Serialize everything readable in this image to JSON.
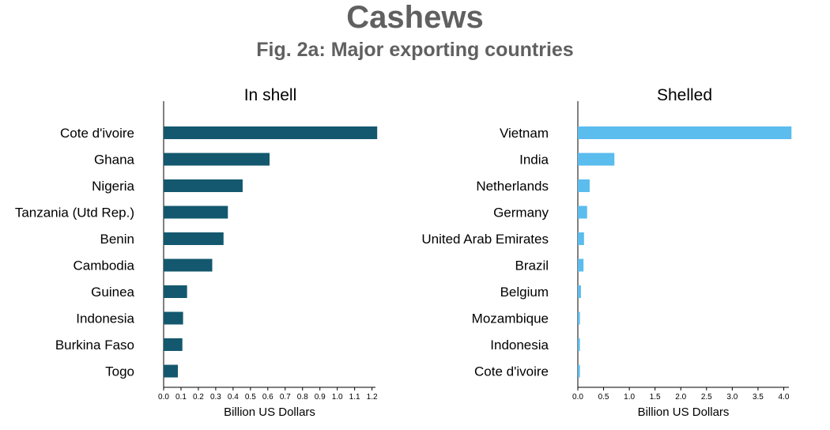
{
  "title": "Cashews",
  "subtitle": "Fig. 2a: Major exporting countries",
  "chart_data": [
    {
      "type": "bar",
      "orientation": "horizontal",
      "title": "In shell",
      "xlabel": "Billion US Dollars",
      "ylabel": "",
      "color": "#13586e",
      "xlim": [
        0,
        1.22
      ],
      "xticks": [
        "0.0",
        "0.1",
        "0.2",
        "0.3",
        "0.4",
        "0.5",
        "0.6",
        "0.7",
        "0.8",
        "0.9",
        "1.0",
        "1.1",
        "1.2"
      ],
      "categories": [
        "Cote d'ivoire",
        "Ghana",
        "Nigeria",
        "Tanzania (Utd Rep.)",
        "Benin",
        "Cambodia",
        "Guinea",
        "Indonesia",
        "Burkina Faso",
        "Togo"
      ],
      "values": [
        1.23,
        0.61,
        0.455,
        0.37,
        0.345,
        0.28,
        0.135,
        0.112,
        0.108,
        0.082
      ]
    },
    {
      "type": "bar",
      "orientation": "horizontal",
      "title": "Shelled",
      "xlabel": "Billion US Dollars",
      "ylabel": "",
      "color": "#5bbcee",
      "xlim": [
        0,
        4.1
      ],
      "xticks": [
        "0.0",
        "0.5",
        "1.0",
        "1.5",
        "2.0",
        "2.5",
        "3.0",
        "3.5",
        "4.0"
      ],
      "categories": [
        "Vietnam",
        "India",
        "Netherlands",
        "Germany",
        "United Arab Emirates",
        "Brazil",
        "Belgium",
        "Mozambique",
        "Indonesia",
        "Cote d'ivoire"
      ],
      "values": [
        4.15,
        0.71,
        0.23,
        0.18,
        0.12,
        0.11,
        0.06,
        0.04,
        0.04,
        0.04
      ]
    }
  ]
}
